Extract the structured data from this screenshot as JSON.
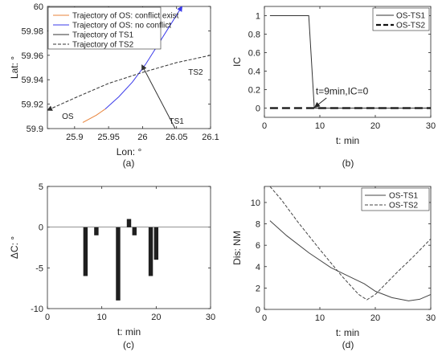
{
  "chart_data": [
    {
      "id": "a",
      "type": "line",
      "caption": "(a)",
      "xlabel": "Lon: °",
      "ylabel": "Lat: °",
      "xlim": [
        25.86,
        26.1
      ],
      "ylim": [
        59.9,
        60.0
      ],
      "xticks": [
        {
          "v": 25.9,
          "label": "25.9"
        },
        {
          "v": 25.95,
          "label": "25.95"
        },
        {
          "v": 26.0,
          "label": "26"
        },
        {
          "v": 26.05,
          "label": "26.05"
        },
        {
          "v": 26.1,
          "label": "26.1"
        }
      ],
      "yticks": [
        {
          "v": 59.9,
          "label": "59.9"
        },
        {
          "v": 59.92,
          "label": "59.92"
        },
        {
          "v": 59.94,
          "label": "59.94"
        },
        {
          "v": 59.96,
          "label": "59.96"
        },
        {
          "v": 59.98,
          "label": "59.98"
        },
        {
          "v": 60.0,
          "label": "60"
        }
      ],
      "legend": "top-left",
      "series": [
        {
          "name": "Trajectory of OS: conflict exist",
          "color": "#e8833a",
          "dash": "solid",
          "x": [
            25.912,
            25.932,
            25.945
          ],
          "y": [
            59.905,
            59.911,
            59.916
          ]
        },
        {
          "name": "Trajectory of OS: no conflict",
          "color": "#3a3aea",
          "dash": "solid",
          "x": [
            25.945,
            25.965,
            25.985,
            26.005,
            26.023,
            26.04,
            26.058
          ],
          "y": [
            59.916,
            59.926,
            59.938,
            59.953,
            59.969,
            59.984,
            60.0
          ]
        },
        {
          "name": "Trajectory of TS1",
          "color": "#333333",
          "dash": "solid",
          "x": [
            26.048,
            25.999
          ],
          "y": [
            59.9,
            59.952
          ]
        },
        {
          "name": "Trajectory of TS2",
          "color": "#333333",
          "dash": "dashed",
          "x": [
            26.1,
            26.05,
            26.0,
            25.95,
            25.9,
            25.86
          ],
          "y": [
            59.96,
            59.954,
            59.946,
            59.937,
            59.925,
            59.915
          ]
        }
      ],
      "annotations": [
        {
          "text": "OS",
          "x": 25.89,
          "y": 59.908
        },
        {
          "text": "TS1",
          "x": 26.05,
          "y": 59.904
        },
        {
          "text": "TS2",
          "x": 26.078,
          "y": 59.944
        }
      ]
    },
    {
      "id": "b",
      "type": "line",
      "caption": "(b)",
      "xlabel": "t: min",
      "ylabel": "IC",
      "xlim": [
        0,
        30
      ],
      "ylim": [
        -0.1,
        1.1
      ],
      "xticks": [
        {
          "v": 0,
          "label": "0"
        },
        {
          "v": 10,
          "label": "10"
        },
        {
          "v": 20,
          "label": "20"
        },
        {
          "v": 30,
          "label": "30"
        }
      ],
      "yticks": [
        {
          "v": 0,
          "label": "0"
        },
        {
          "v": 0.2,
          "label": "0.2"
        },
        {
          "v": 0.4,
          "label": "0.4"
        },
        {
          "v": 0.6,
          "label": "0.6"
        },
        {
          "v": 0.8,
          "label": "0.8"
        },
        {
          "v": 1,
          "label": "1"
        }
      ],
      "legend": "top-right",
      "series": [
        {
          "name": "OS-TS1",
          "color": "#333333",
          "dash": "solid",
          "x": [
            1,
            8,
            9,
            30
          ],
          "y": [
            1,
            1,
            0,
            0
          ]
        },
        {
          "name": "OS-TS2",
          "color": "#111111",
          "dash": "bold-dashed",
          "x": [
            1,
            30
          ],
          "y": [
            0,
            0
          ]
        }
      ],
      "annotations": [
        {
          "text": "t=9min,IC=0",
          "x": 14,
          "y": 0.15
        }
      ]
    },
    {
      "id": "c",
      "type": "bar",
      "caption": "(c)",
      "xlabel": "t: min",
      "ylabel": "ΔC: °",
      "xlim": [
        0,
        30
      ],
      "ylim": [
        -10,
        5
      ],
      "xticks": [
        {
          "v": 0,
          "label": "0"
        },
        {
          "v": 10,
          "label": "10"
        },
        {
          "v": 20,
          "label": "20"
        },
        {
          "v": 30,
          "label": "30"
        }
      ],
      "yticks": [
        {
          "v": -10,
          "label": "-10"
        },
        {
          "v": -5,
          "label": "-5"
        },
        {
          "v": 0,
          "label": "0"
        },
        {
          "v": 5,
          "label": "5"
        }
      ],
      "x": [
        7,
        9,
        13,
        15,
        16,
        19,
        20
      ],
      "values": [
        -6,
        -1,
        -9,
        1,
        -1,
        -6,
        -4
      ]
    },
    {
      "id": "d",
      "type": "line",
      "caption": "(d)",
      "xlabel": "t: min",
      "ylabel": "Dis: NM",
      "xlim": [
        0,
        30
      ],
      "ylim": [
        0,
        11.5
      ],
      "xticks": [
        {
          "v": 0,
          "label": "0"
        },
        {
          "v": 10,
          "label": "10"
        },
        {
          "v": 20,
          "label": "20"
        },
        {
          "v": 30,
          "label": "30"
        }
      ],
      "yticks": [
        {
          "v": 0,
          "label": "0"
        },
        {
          "v": 2,
          "label": "2"
        },
        {
          "v": 4,
          "label": "4"
        },
        {
          "v": 6,
          "label": "6"
        },
        {
          "v": 8,
          "label": "8"
        },
        {
          "v": 10,
          "label": "10"
        }
      ],
      "legend": "top-right",
      "series": [
        {
          "name": "OS-TS1",
          "color": "#444444",
          "dash": "solid",
          "x": [
            1,
            4,
            8,
            12,
            16,
            18,
            20,
            23,
            26,
            28,
            30
          ],
          "y": [
            8.3,
            6.9,
            5.3,
            3.9,
            2.9,
            2.4,
            1.7,
            1.1,
            0.8,
            0.95,
            1.4
          ]
        },
        {
          "name": "OS-TS2",
          "color": "#444444",
          "dash": "dashed",
          "x": [
            1,
            3,
            6,
            10,
            14,
            17,
            18.5,
            20,
            24,
            27,
            30
          ],
          "y": [
            11.5,
            10.3,
            8.2,
            5.6,
            3.1,
            1.4,
            0.9,
            1.4,
            3.5,
            5.0,
            6.6
          ]
        }
      ]
    }
  ]
}
